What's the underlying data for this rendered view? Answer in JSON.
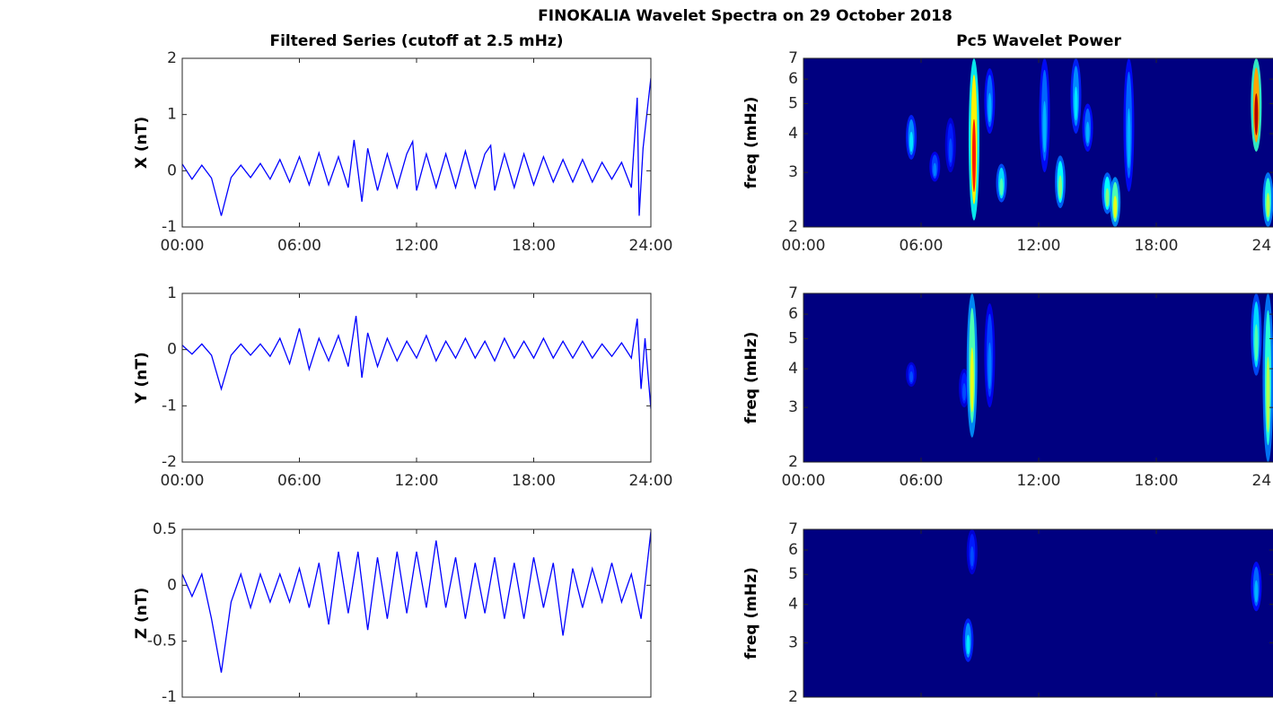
{
  "title": "FINOKALIA Wavelet Spectra on 29 October 2018",
  "chart_data": [
    {
      "type": "line",
      "title": "Filtered Series (cutoff at 2.5 mHz)",
      "ylabel": "X (nT)",
      "color": "#0000ff",
      "xlim": [
        0,
        24
      ],
      "xticks": [
        {
          "value": 0,
          "label": "00:00"
        },
        {
          "value": 6,
          "label": "06:00"
        },
        {
          "value": 12,
          "label": "12:00"
        },
        {
          "value": 18,
          "label": "18:00"
        },
        {
          "value": 24,
          "label": "24:00"
        }
      ],
      "ylim": [
        -1,
        2
      ],
      "yticks": [
        -1,
        0,
        1,
        2
      ],
      "x": [
        0,
        0.5,
        1,
        1.5,
        2,
        2.5,
        3,
        3.5,
        4,
        4.5,
        5,
        5.5,
        6,
        6.5,
        7,
        7.5,
        8,
        8.5,
        8.8,
        9.2,
        9.5,
        10,
        10.5,
        11,
        11.5,
        11.8,
        12,
        12.5,
        13,
        13.5,
        14,
        14.5,
        15,
        15.5,
        15.8,
        16,
        16.5,
        17,
        17.5,
        18,
        18.5,
        19,
        19.5,
        20,
        20.5,
        21,
        21.5,
        22,
        22.5,
        23,
        23.3,
        23.4,
        23.6,
        24
      ],
      "values": [
        0.12,
        -0.15,
        0.1,
        -0.13,
        -0.8,
        -0.12,
        0.1,
        -0.12,
        0.13,
        -0.15,
        0.2,
        -0.2,
        0.25,
        -0.25,
        0.32,
        -0.25,
        0.25,
        -0.3,
        0.55,
        -0.55,
        0.4,
        -0.35,
        0.3,
        -0.3,
        0.3,
        0.52,
        -0.35,
        0.3,
        -0.3,
        0.3,
        -0.3,
        0.35,
        -0.3,
        0.3,
        0.45,
        -0.35,
        0.3,
        -0.3,
        0.3,
        -0.25,
        0.25,
        -0.2,
        0.2,
        -0.2,
        0.2,
        -0.2,
        0.15,
        -0.15,
        0.15,
        -0.3,
        1.3,
        -0.8,
        0.4,
        1.65
      ]
    },
    {
      "type": "line",
      "ylabel": "Y (nT)",
      "color": "#0000ff",
      "xlim": [
        0,
        24
      ],
      "xticks": [
        {
          "value": 0,
          "label": "00:00"
        },
        {
          "value": 6,
          "label": "06:00"
        },
        {
          "value": 12,
          "label": "12:00"
        },
        {
          "value": 18,
          "label": "18:00"
        },
        {
          "value": 24,
          "label": "24:00"
        }
      ],
      "ylim": [
        -2,
        1
      ],
      "yticks": [
        -2,
        -1,
        0,
        1
      ],
      "x": [
        0,
        0.5,
        1,
        1.5,
        2,
        2.5,
        3,
        3.5,
        4,
        4.5,
        5,
        5.5,
        6,
        6.5,
        7,
        7.5,
        8,
        8.5,
        8.9,
        9.2,
        9.5,
        10,
        10.5,
        11,
        11.5,
        12,
        12.5,
        13,
        13.5,
        14,
        14.5,
        15,
        15.5,
        16,
        16.5,
        17,
        17.5,
        18,
        18.5,
        19,
        19.5,
        20,
        20.5,
        21,
        21.5,
        22,
        22.5,
        23,
        23.3,
        23.5,
        23.7,
        24
      ],
      "values": [
        0.08,
        -0.08,
        0.1,
        -0.1,
        -0.7,
        -0.1,
        0.1,
        -0.1,
        0.1,
        -0.12,
        0.2,
        -0.25,
        0.38,
        -0.35,
        0.2,
        -0.2,
        0.25,
        -0.3,
        0.6,
        -0.5,
        0.3,
        -0.3,
        0.2,
        -0.2,
        0.15,
        -0.15,
        0.25,
        -0.2,
        0.15,
        -0.15,
        0.2,
        -0.15,
        0.15,
        -0.2,
        0.2,
        -0.15,
        0.15,
        -0.15,
        0.2,
        -0.15,
        0.15,
        -0.15,
        0.15,
        -0.15,
        0.1,
        -0.12,
        0.12,
        -0.15,
        0.55,
        -0.7,
        0.2,
        -1.05
      ]
    },
    {
      "type": "line",
      "ylabel": "Z (nT)",
      "color": "#0000ff",
      "xlim": [
        0,
        24
      ],
      "xticks": [
        0,
        6,
        12,
        18,
        24
      ],
      "show_xtick_labels": false,
      "ylim": [
        -1,
        0.5
      ],
      "yticks": [
        -1,
        -0.5,
        0,
        0.5
      ],
      "x": [
        0,
        0.5,
        1,
        1.5,
        2,
        2.5,
        3,
        3.5,
        4,
        4.5,
        5,
        5.5,
        6,
        6.5,
        7,
        7.5,
        8,
        8.5,
        9,
        9.5,
        10,
        10.5,
        11,
        11.5,
        12,
        12.5,
        13,
        13.5,
        14,
        14.5,
        15,
        15.5,
        16,
        16.5,
        17,
        17.5,
        18,
        18.5,
        19,
        19.5,
        20,
        20.5,
        21,
        21.5,
        22,
        22.5,
        23,
        23.5,
        24
      ],
      "values": [
        0.1,
        -0.1,
        0.1,
        -0.3,
        -0.78,
        -0.15,
        0.1,
        -0.2,
        0.1,
        -0.15,
        0.1,
        -0.15,
        0.15,
        -0.2,
        0.2,
        -0.35,
        0.3,
        -0.25,
        0.3,
        -0.4,
        0.25,
        -0.3,
        0.3,
        -0.25,
        0.3,
        -0.2,
        0.4,
        -0.2,
        0.25,
        -0.3,
        0.2,
        -0.25,
        0.25,
        -0.3,
        0.2,
        -0.3,
        0.25,
        -0.2,
        0.2,
        -0.45,
        0.15,
        -0.2,
        0.15,
        -0.15,
        0.2,
        -0.15,
        0.1,
        -0.3,
        0.48
      ]
    },
    {
      "type": "heatmap",
      "title": "Pc5 Wavelet Power",
      "ylabel": "freq (mHz)",
      "colormap": "jet",
      "yscale": "log",
      "xlim": [
        0,
        24
      ],
      "xticks": [
        {
          "value": 0,
          "label": "00:00"
        },
        {
          "value": 6,
          "label": "06:00"
        },
        {
          "value": 12,
          "label": "12:00"
        },
        {
          "value": 18,
          "label": "18:00"
        },
        {
          "value": 24,
          "label": "24:00"
        }
      ],
      "ylim": [
        2,
        7
      ],
      "yticks": [
        2,
        3,
        4,
        5,
        6,
        7
      ],
      "x": [
        5.5,
        6.7,
        7.5,
        8.7,
        9.5,
        10.1,
        12.3,
        13.1,
        13.9,
        14.5,
        15.5,
        15.9,
        16.6,
        23.1,
        23.7
      ],
      "f_min": [
        3.3,
        2.8,
        3,
        2.1,
        4,
        2.4,
        3,
        2.3,
        4,
        3.5,
        2.2,
        2,
        2.6,
        3.5,
        2
      ],
      "f_max": [
        4.6,
        3.5,
        4.5,
        7,
        6.5,
        3.2,
        7,
        3.4,
        7,
        5,
        3,
        2.9,
        7,
        7,
        3
      ],
      "values": [
        0.35,
        0.25,
        0.2,
        0.85,
        0.3,
        0.45,
        0.3,
        0.5,
        0.35,
        0.3,
        0.5,
        0.6,
        0.3,
        0.95,
        0.55
      ]
    },
    {
      "type": "heatmap",
      "ylabel": "freq (mHz)",
      "colormap": "jet",
      "yscale": "log",
      "xlim": [
        0,
        24
      ],
      "xticks": [
        {
          "value": 0,
          "label": "00:00"
        },
        {
          "value": 6,
          "label": "06:00"
        },
        {
          "value": 12,
          "label": "12:00"
        },
        {
          "value": 18,
          "label": "18:00"
        },
        {
          "value": 24,
          "label": "24:00"
        }
      ],
      "ylim": [
        2,
        7
      ],
      "yticks": [
        2,
        3,
        4,
        5,
        6,
        7
      ],
      "x": [
        5.5,
        8.2,
        8.6,
        9.5,
        23.1,
        23.7
      ],
      "f_min": [
        3.5,
        3,
        2.4,
        3,
        3.8,
        2
      ],
      "f_max": [
        4.2,
        4,
        7,
        6.5,
        7,
        7
      ],
      "values": [
        0.2,
        0.2,
        0.6,
        0.25,
        0.45,
        0.55
      ]
    },
    {
      "type": "heatmap",
      "ylabel": "freq (mHz)",
      "colormap": "jet",
      "yscale": "log",
      "xlim": [
        0,
        24
      ],
      "xticks": [
        0,
        6,
        12,
        18,
        24
      ],
      "show_xtick_labels": false,
      "ylim": [
        2,
        7
      ],
      "yticks": [
        2,
        3,
        4,
        5,
        6,
        7
      ],
      "x": [
        8.4,
        8.6,
        23.1
      ],
      "f_min": [
        2.6,
        5,
        3.8
      ],
      "f_max": [
        3.6,
        7,
        5.5
      ],
      "values": [
        0.35,
        0.2,
        0.3
      ]
    }
  ]
}
